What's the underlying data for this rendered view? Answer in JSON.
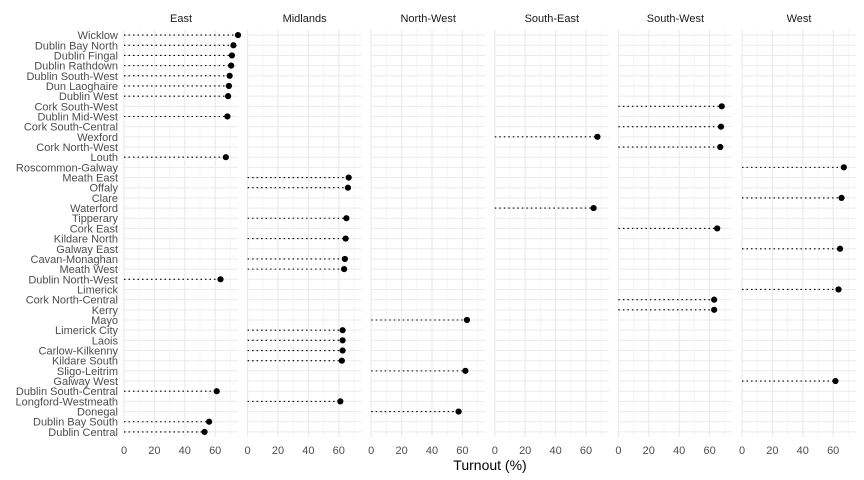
{
  "chart_data": {
    "type": "dot-plot (lollipop), faceted",
    "xlabel": "Turnout (%)",
    "ylabel": "",
    "x_ticks": [
      0,
      20,
      40,
      60
    ],
    "xlim": [
      0,
      75
    ],
    "grid": true,
    "facets": [
      "East",
      "Midlands",
      "North-West",
      "South-East",
      "South-West",
      "West"
    ],
    "constituencies": [
      "Wicklow",
      "Dublin Bay North",
      "Dublin Fingal",
      "Dublin Rathdown",
      "Dublin South-West",
      "Dun Laoghaire",
      "Dublin West",
      "Cork South-West",
      "Dublin Mid-West",
      "Cork South-Central",
      "Wexford",
      "Cork North-West",
      "Louth",
      "Roscommon-Galway",
      "Meath East",
      "Offaly",
      "Clare",
      "Waterford",
      "Tipperary",
      "Cork East",
      "Kildare North",
      "Galway East",
      "Cavan-Monaghan",
      "Meath West",
      "Dublin North-West",
      "Limerick",
      "Cork North-Central",
      "Kerry",
      "Mayo",
      "Limerick City",
      "Laois",
      "Carlow-Kilkenny",
      "Kildare South",
      "Sligo-Leitrim",
      "Galway West",
      "Dublin South-Central",
      "Longford-Westmeath",
      "Donegal",
      "Dublin Bay South",
      "Dublin Central"
    ],
    "points": [
      {
        "constituency": "Wicklow",
        "region": "East",
        "turnout": 75
      },
      {
        "constituency": "Dublin Bay North",
        "region": "East",
        "turnout": 72
      },
      {
        "constituency": "Dublin Fingal",
        "region": "East",
        "turnout": 71
      },
      {
        "constituency": "Dublin Rathdown",
        "region": "East",
        "turnout": 70.5
      },
      {
        "constituency": "Dublin South-West",
        "region": "East",
        "turnout": 69.5
      },
      {
        "constituency": "Dun Laoghaire",
        "region": "East",
        "turnout": 69
      },
      {
        "constituency": "Dublin West",
        "region": "East",
        "turnout": 68.5
      },
      {
        "constituency": "Cork South-West",
        "region": "South-West",
        "turnout": 68
      },
      {
        "constituency": "Dublin Mid-West",
        "region": "East",
        "turnout": 68
      },
      {
        "constituency": "Cork South-Central",
        "region": "South-West",
        "turnout": 67.5
      },
      {
        "constituency": "Wexford",
        "region": "South-East",
        "turnout": 67.5
      },
      {
        "constituency": "Cork North-West",
        "region": "South-West",
        "turnout": 67
      },
      {
        "constituency": "Louth",
        "region": "East",
        "turnout": 67
      },
      {
        "constituency": "Roscommon-Galway",
        "region": "West",
        "turnout": 67
      },
      {
        "constituency": "Meath East",
        "region": "Midlands",
        "turnout": 66.5
      },
      {
        "constituency": "Offaly",
        "region": "Midlands",
        "turnout": 66
      },
      {
        "constituency": "Clare",
        "region": "West",
        "turnout": 65.5
      },
      {
        "constituency": "Waterford",
        "region": "South-East",
        "turnout": 65
      },
      {
        "constituency": "Tipperary",
        "region": "Midlands",
        "turnout": 65
      },
      {
        "constituency": "Cork East",
        "region": "South-West",
        "turnout": 65
      },
      {
        "constituency": "Kildare North",
        "region": "Midlands",
        "turnout": 64.5
      },
      {
        "constituency": "Galway East",
        "region": "West",
        "turnout": 64.5
      },
      {
        "constituency": "Cavan-Monaghan",
        "region": "Midlands",
        "turnout": 64
      },
      {
        "constituency": "Meath West",
        "region": "Midlands",
        "turnout": 63.5
      },
      {
        "constituency": "Dublin North-West",
        "region": "East",
        "turnout": 63.5
      },
      {
        "constituency": "Limerick",
        "region": "West",
        "turnout": 63.5
      },
      {
        "constituency": "Cork North-Central",
        "region": "South-West",
        "turnout": 63
      },
      {
        "constituency": "Kerry",
        "region": "South-West",
        "turnout": 63
      },
      {
        "constituency": "Mayo",
        "region": "North-West",
        "turnout": 63
      },
      {
        "constituency": "Limerick City",
        "region": "Midlands",
        "turnout": 62.5
      },
      {
        "constituency": "Laois",
        "region": "Midlands",
        "turnout": 62.5
      },
      {
        "constituency": "Carlow-Kilkenny",
        "region": "Midlands",
        "turnout": 62.5
      },
      {
        "constituency": "Kildare South",
        "region": "Midlands",
        "turnout": 62
      },
      {
        "constituency": "Sligo-Leitrim",
        "region": "North-West",
        "turnout": 62
      },
      {
        "constituency": "Galway West",
        "region": "West",
        "turnout": 61.5
      },
      {
        "constituency": "Dublin South-Central",
        "region": "East",
        "turnout": 61
      },
      {
        "constituency": "Longford-Westmeath",
        "region": "Midlands",
        "turnout": 61
      },
      {
        "constituency": "Donegal",
        "region": "North-West",
        "turnout": 57.5
      },
      {
        "constituency": "Dublin Bay South",
        "region": "East",
        "turnout": 56
      },
      {
        "constituency": "Dublin Central",
        "region": "East",
        "turnout": 53
      }
    ],
    "colors": {
      "point": "#000000",
      "segment": "#000000",
      "grid_major": "#ebebeb",
      "grid_minor": "#f5f5f5",
      "text": "#4d4d4d"
    }
  }
}
